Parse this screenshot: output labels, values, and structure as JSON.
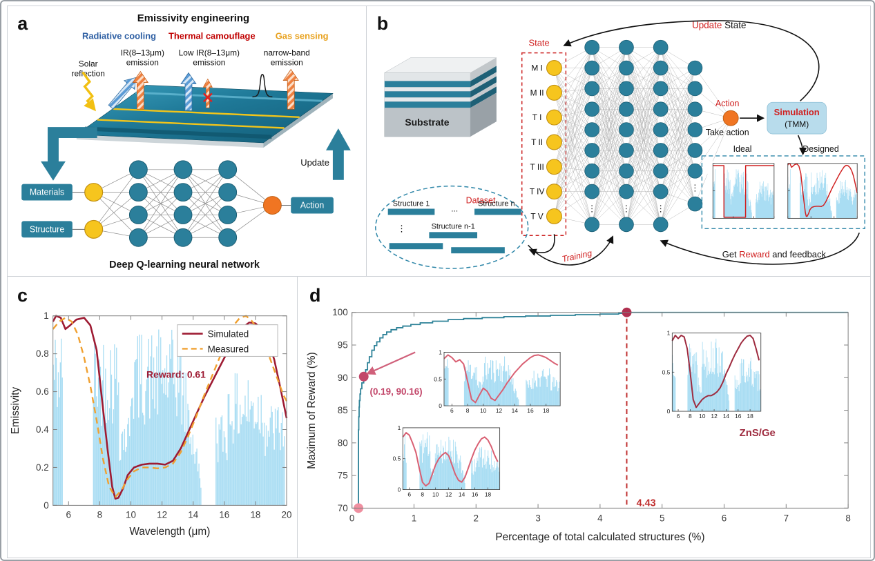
{
  "figure": {
    "panels": {
      "a": {
        "label": "a",
        "title": "Emissivity engineering",
        "applications": [
          {
            "name": "Radiative cooling",
            "color": "#2e5fa3",
            "emission_line1": "IR(8–13μm)",
            "emission_line2": "emission"
          },
          {
            "name": "Thermal camouflage",
            "color": "#c00000",
            "emission_line1": "Low IR(8–13μm)",
            "emission_line2": "emission"
          },
          {
            "name": "Gas sensing",
            "color": "#e8a11d",
            "emission_line1": "narrow-band",
            "emission_line2": "emission"
          }
        ],
        "solar_line1": "Solar",
        "solar_line2": "reflection",
        "update_label": "Update",
        "input_labels": [
          "Materials",
          "Structure"
        ],
        "output_label": "Action",
        "caption": "Deep Q-learning neural network",
        "node_colors": {
          "input": "#f6c51e",
          "hidden": "#2b7f9b",
          "output": "#f07522"
        }
      },
      "b": {
        "label": "b",
        "substrate_label": "Substrate",
        "state_label": "State",
        "state_nodes": [
          "M I",
          "M II",
          "T I",
          "T II",
          "T III",
          "T IV",
          "T V"
        ],
        "update_word": "Update ",
        "state_word": "State",
        "action_label": "Action",
        "take_action_label": "Take action",
        "simulation_label": "Simulation",
        "simulation_sub": "(TMM)",
        "ideal_label": "Ideal",
        "designed_label": "Designed",
        "reward_prefix": "Get ",
        "reward_word": "Reward",
        "reward_suffix": " and feedback",
        "dataset_label": "Dataset",
        "training_label": "Training",
        "dataset_items": [
          "Structure 1",
          "...",
          "Structure n",
          "Structure n-1",
          "⋮"
        ],
        "ideal_curve_points": [
          [
            5,
            0.96
          ],
          [
            7.7,
            0.96
          ],
          [
            7.72,
            0.02
          ],
          [
            13,
            0.02
          ],
          [
            13.02,
            0.96
          ],
          [
            20,
            0.96
          ]
        ]
      },
      "c": {
        "label": "c"
      },
      "d": {
        "label": "d"
      }
    }
  },
  "chart_data": [
    {
      "panel": "c",
      "type": "line",
      "xlabel": "Wavelength (μm)",
      "ylabel": "Emissivity",
      "xlim": [
        5,
        20
      ],
      "ylim": [
        0,
        1
      ],
      "xticks": [
        6,
        8,
        10,
        12,
        14,
        16,
        18,
        20
      ],
      "yticks": [
        0,
        0.2,
        0.4,
        0.6,
        0.8,
        1
      ],
      "background": "atmospheric-transmittance-band",
      "annotation": {
        "text": "Reward: 0.61",
        "color": "#9e1b33"
      },
      "legend_position": "top-center",
      "series": [
        {
          "name": "Simulated",
          "color": "#9e1b33",
          "style": "solid",
          "points": [
            [
              5,
              0.97
            ],
            [
              5.2,
              1.0
            ],
            [
              5.5,
              0.99
            ],
            [
              5.8,
              0.93
            ],
            [
              6.1,
              0.95
            ],
            [
              6.5,
              0.98
            ],
            [
              7,
              0.99
            ],
            [
              7.4,
              0.95
            ],
            [
              7.8,
              0.82
            ],
            [
              8.2,
              0.52
            ],
            [
              8.5,
              0.3
            ],
            [
              8.8,
              0.1
            ],
            [
              9,
              0.035
            ],
            [
              9.2,
              0.04
            ],
            [
              9.5,
              0.09
            ],
            [
              9.8,
              0.16
            ],
            [
              10.2,
              0.2
            ],
            [
              10.7,
              0.215
            ],
            [
              11.2,
              0.22
            ],
            [
              11.7,
              0.22
            ],
            [
              12.2,
              0.215
            ],
            [
              12.7,
              0.235
            ],
            [
              13.2,
              0.3
            ],
            [
              13.7,
              0.39
            ],
            [
              14.2,
              0.48
            ],
            [
              14.7,
              0.57
            ],
            [
              15.2,
              0.65
            ],
            [
              15.7,
              0.73
            ],
            [
              16.2,
              0.81
            ],
            [
              16.7,
              0.88
            ],
            [
              17.2,
              0.94
            ],
            [
              17.6,
              0.965
            ],
            [
              18,
              0.96
            ],
            [
              18.4,
              0.93
            ],
            [
              18.8,
              0.87
            ],
            [
              19.2,
              0.77
            ],
            [
              19.6,
              0.62
            ],
            [
              20,
              0.46
            ]
          ]
        },
        {
          "name": "Measured",
          "color": "#f0a030",
          "style": "dashed",
          "points": [
            [
              5,
              0.93
            ],
            [
              5.4,
              0.97
            ],
            [
              5.8,
              0.99
            ],
            [
              6.2,
              0.97
            ],
            [
              6.6,
              0.9
            ],
            [
              7,
              0.78
            ],
            [
              7.4,
              0.63
            ],
            [
              7.8,
              0.45
            ],
            [
              8.2,
              0.25
            ],
            [
              8.6,
              0.1
            ],
            [
              9,
              0.045
            ],
            [
              9.4,
              0.08
            ],
            [
              9.8,
              0.14
            ],
            [
              10.2,
              0.18
            ],
            [
              10.7,
              0.2
            ],
            [
              11.2,
              0.2
            ],
            [
              11.7,
              0.195
            ],
            [
              12.2,
              0.2
            ],
            [
              12.7,
              0.22
            ],
            [
              13.2,
              0.28
            ],
            [
              13.7,
              0.37
            ],
            [
              14.2,
              0.47
            ],
            [
              14.7,
              0.58
            ],
            [
              15.2,
              0.68
            ],
            [
              15.7,
              0.78
            ],
            [
              16.2,
              0.88
            ],
            [
              16.6,
              0.95
            ],
            [
              17,
              0.99
            ],
            [
              17.4,
              1.0
            ],
            [
              17.8,
              0.97
            ],
            [
              18.2,
              0.92
            ],
            [
              18.6,
              0.85
            ],
            [
              19,
              0.76
            ],
            [
              19.4,
              0.67
            ],
            [
              19.8,
              0.58
            ],
            [
              20,
              0.55
            ]
          ]
        }
      ]
    },
    {
      "panel": "d",
      "type": "step-line",
      "xlabel": "Percentage of total calculated structures (%)",
      "ylabel": "Maximum of Reward (%)",
      "xlim": [
        0,
        8
      ],
      "ylim": [
        70,
        100
      ],
      "xticks": [
        0,
        1,
        2,
        3,
        4,
        5,
        6,
        7,
        8
      ],
      "yticks": [
        70,
        75,
        80,
        85,
        90,
        95,
        100
      ],
      "series": [
        {
          "name": "Maximum of reward",
          "color": "#2e8298",
          "points": [
            [
              0.105,
              70
            ],
            [
              0.105,
              82
            ],
            [
              0.11,
              84
            ],
            [
              0.115,
              85.5
            ],
            [
              0.12,
              86.5
            ],
            [
              0.13,
              87.5
            ],
            [
              0.14,
              88.3
            ],
            [
              0.16,
              89.2
            ],
            [
              0.19,
              90.16
            ],
            [
              0.22,
              91.2
            ],
            [
              0.25,
              92.3
            ],
            [
              0.28,
              93.2
            ],
            [
              0.32,
              94.2
            ],
            [
              0.36,
              94.9
            ],
            [
              0.4,
              95.5
            ],
            [
              0.45,
              96.1
            ],
            [
              0.5,
              96.6
            ],
            [
              0.56,
              97.0
            ],
            [
              0.63,
              97.35
            ],
            [
              0.72,
              97.65
            ],
            [
              0.82,
              97.9
            ],
            [
              0.95,
              98.15
            ],
            [
              1.1,
              98.4
            ],
            [
              1.3,
              98.65
            ],
            [
              1.55,
              98.9
            ],
            [
              1.8,
              99.05
            ],
            [
              2.1,
              99.2
            ],
            [
              2.45,
              99.35
            ],
            [
              2.8,
              99.45
            ],
            [
              3.2,
              99.55
            ],
            [
              3.6,
              99.65
            ],
            [
              4.0,
              99.75
            ],
            [
              4.3,
              99.85
            ],
            [
              4.43,
              100
            ],
            [
              8,
              100
            ]
          ]
        }
      ],
      "markers": [
        {
          "x": 0.105,
          "y": 70,
          "color": "#ef8fa0"
        },
        {
          "x": 0.19,
          "y": 90.16,
          "color": "#c2476a",
          "label": "(0.19, 90.16)"
        },
        {
          "x": 4.43,
          "y": 100,
          "color": "#b03050"
        }
      ],
      "vline": {
        "x": 4.43,
        "label": "4.43",
        "color": "#c03030",
        "style": "dashed"
      },
      "material_label": {
        "text": "ZnS/Ge",
        "color": "#9e2b3f"
      },
      "insets": [
        {
          "id": "inset-top",
          "color": "#d95f72",
          "xticks": [
            6,
            8,
            10,
            12,
            14,
            16,
            18
          ],
          "yticks": [
            0,
            0.5,
            1
          ],
          "points": [
            [
              5,
              0.88
            ],
            [
              5.5,
              0.95
            ],
            [
              6,
              0.9
            ],
            [
              6.5,
              0.82
            ],
            [
              7,
              0.86
            ],
            [
              7.5,
              0.78
            ],
            [
              8,
              0.45
            ],
            [
              8.5,
              0.12
            ],
            [
              9,
              0.06
            ],
            [
              9.5,
              0.2
            ],
            [
              10,
              0.33
            ],
            [
              10.5,
              0.27
            ],
            [
              11,
              0.14
            ],
            [
              11.5,
              0.1
            ],
            [
              12,
              0.2
            ],
            [
              12.5,
              0.3
            ],
            [
              13,
              0.42
            ],
            [
              13.5,
              0.52
            ],
            [
              14,
              0.62
            ],
            [
              14.5,
              0.7
            ],
            [
              15,
              0.78
            ],
            [
              15.5,
              0.84
            ],
            [
              16,
              0.9
            ],
            [
              16.5,
              0.94
            ],
            [
              17,
              0.95
            ],
            [
              17.5,
              0.93
            ],
            [
              18,
              0.9
            ],
            [
              18.5,
              0.85
            ],
            [
              19,
              0.8
            ],
            [
              19.5,
              0.76
            ]
          ]
        },
        {
          "id": "inset-bottom",
          "color": "#d95f72",
          "xticks": [
            6,
            8,
            10,
            12,
            14,
            16,
            18
          ],
          "yticks": [
            0,
            0.5,
            1
          ],
          "points": [
            [
              5,
              0.85
            ],
            [
              5.5,
              0.92
            ],
            [
              6,
              0.88
            ],
            [
              6.5,
              0.75
            ],
            [
              7,
              0.6
            ],
            [
              7.5,
              0.35
            ],
            [
              8,
              0.12
            ],
            [
              8.5,
              0.06
            ],
            [
              9,
              0.1
            ],
            [
              9.5,
              0.25
            ],
            [
              10,
              0.4
            ],
            [
              10.5,
              0.5
            ],
            [
              11,
              0.56
            ],
            [
              11.5,
              0.6
            ],
            [
              12,
              0.55
            ],
            [
              12.5,
              0.4
            ],
            [
              13,
              0.25
            ],
            [
              13.5,
              0.15
            ],
            [
              14,
              0.12
            ],
            [
              14.5,
              0.2
            ],
            [
              15,
              0.35
            ],
            [
              15.5,
              0.5
            ],
            [
              16,
              0.64
            ],
            [
              16.5,
              0.74
            ],
            [
              17,
              0.82
            ],
            [
              17.5,
              0.85
            ],
            [
              18,
              0.8
            ],
            [
              18.5,
              0.7
            ],
            [
              19,
              0.56
            ],
            [
              19.5,
              0.45
            ]
          ]
        },
        {
          "id": "inset-znsge",
          "color": "#9e2b3f",
          "xticks": [
            6,
            8,
            10,
            12,
            14,
            16,
            18
          ],
          "yticks": [
            0,
            0.5,
            1
          ],
          "points": [
            [
              5,
              0.9
            ],
            [
              5.5,
              0.97
            ],
            [
              6,
              0.93
            ],
            [
              6.5,
              0.97
            ],
            [
              7,
              0.95
            ],
            [
              7.5,
              0.8
            ],
            [
              8,
              0.5
            ],
            [
              8.5,
              0.15
            ],
            [
              9,
              0.05
            ],
            [
              9.5,
              0.1
            ],
            [
              10,
              0.15
            ],
            [
              10.5,
              0.18
            ],
            [
              11,
              0.2
            ],
            [
              11.5,
              0.2
            ],
            [
              12,
              0.22
            ],
            [
              12.5,
              0.25
            ],
            [
              13,
              0.3
            ],
            [
              13.5,
              0.38
            ],
            [
              14,
              0.48
            ],
            [
              14.5,
              0.56
            ],
            [
              15,
              0.65
            ],
            [
              15.5,
              0.73
            ],
            [
              16,
              0.8
            ],
            [
              16.5,
              0.87
            ],
            [
              17,
              0.92
            ],
            [
              17.5,
              0.96
            ],
            [
              18,
              0.97
            ],
            [
              18.5,
              0.93
            ],
            [
              19,
              0.8
            ],
            [
              19.5,
              0.65
            ]
          ]
        }
      ]
    }
  ]
}
